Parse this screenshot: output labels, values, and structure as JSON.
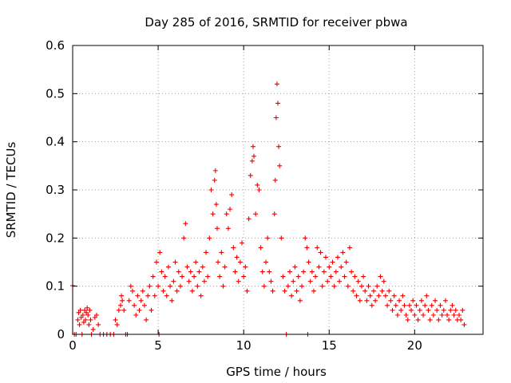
{
  "chart_data": {
    "type": "scatter",
    "title": "Day 285 of 2016, SRMTID for receiver pbwa",
    "xlabel": "GPS time / hours",
    "ylabel": "SRMTID / TECUs",
    "xlim": [
      0,
      24
    ],
    "ylim": [
      0,
      0.6
    ],
    "xticks": [
      0,
      5,
      10,
      15,
      20
    ],
    "yticks": [
      0,
      0.1,
      0.2,
      0.3,
      0.4,
      0.5,
      0.6
    ],
    "xtick_labels": [
      "0",
      "5",
      "10",
      "15",
      "20"
    ],
    "ytick_labels": [
      "0",
      "0.1",
      "0.2",
      "0.3",
      "0.4",
      "0.5",
      "0.6"
    ],
    "grid": true,
    "marker": "+",
    "marker_color": "#ee0000",
    "series": [
      {
        "name": "SRMTID",
        "points": [
          [
            0.0,
            0.101
          ],
          [
            0.1,
            0.0
          ],
          [
            0.2,
            0.0
          ],
          [
            0.3,
            0.03
          ],
          [
            0.35,
            0.045
          ],
          [
            0.4,
            0.02
          ],
          [
            0.45,
            0.05
          ],
          [
            0.5,
            0.035
          ],
          [
            0.55,
            0.0
          ],
          [
            0.6,
            0.04
          ],
          [
            0.65,
            0.025
          ],
          [
            0.7,
            0.05
          ],
          [
            0.75,
            0.03
          ],
          [
            0.8,
            0.045
          ],
          [
            0.85,
            0.055
          ],
          [
            0.9,
            0.04
          ],
          [
            0.95,
            0.02
          ],
          [
            1.0,
            0.05
          ],
          [
            1.05,
            0.03
          ],
          [
            1.1,
            0.0
          ],
          [
            1.2,
            0.01
          ],
          [
            1.3,
            0.035
          ],
          [
            1.4,
            0.04
          ],
          [
            1.5,
            0.02
          ],
          [
            1.6,
            0.0
          ],
          [
            1.8,
            0.0
          ],
          [
            2.0,
            0.0
          ],
          [
            2.2,
            0.0
          ],
          [
            2.4,
            0.0
          ],
          [
            2.5,
            0.03
          ],
          [
            2.6,
            0.02
          ],
          [
            2.7,
            0.05
          ],
          [
            2.8,
            0.06
          ],
          [
            2.85,
            0.08
          ],
          [
            2.9,
            0.07
          ],
          [
            3.0,
            0.05
          ],
          [
            3.1,
            0.0
          ],
          [
            3.2,
            0.0
          ],
          [
            3.3,
            0.07
          ],
          [
            3.4,
            0.1
          ],
          [
            3.5,
            0.09
          ],
          [
            3.6,
            0.06
          ],
          [
            3.7,
            0.04
          ],
          [
            3.8,
            0.08
          ],
          [
            3.9,
            0.05
          ],
          [
            4.0,
            0.07
          ],
          [
            4.1,
            0.09
          ],
          [
            4.2,
            0.06
          ],
          [
            4.3,
            0.03
          ],
          [
            4.4,
            0.08
          ],
          [
            4.5,
            0.1
          ],
          [
            4.6,
            0.05
          ],
          [
            4.7,
            0.12
          ],
          [
            4.8,
            0.08
          ],
          [
            4.9,
            0.15
          ],
          [
            5.0,
            0.1
          ],
          [
            5.05,
            0.0
          ],
          [
            5.1,
            0.17
          ],
          [
            5.2,
            0.13
          ],
          [
            5.3,
            0.09
          ],
          [
            5.4,
            0.12
          ],
          [
            5.5,
            0.08
          ],
          [
            5.6,
            0.14
          ],
          [
            5.7,
            0.1
          ],
          [
            5.8,
            0.07
          ],
          [
            5.9,
            0.11
          ],
          [
            6.0,
            0.15
          ],
          [
            6.1,
            0.09
          ],
          [
            6.2,
            0.13
          ],
          [
            6.3,
            0.1
          ],
          [
            6.4,
            0.12
          ],
          [
            6.5,
            0.2
          ],
          [
            6.6,
            0.23
          ],
          [
            6.7,
            0.14
          ],
          [
            6.8,
            0.11
          ],
          [
            6.9,
            0.13
          ],
          [
            7.0,
            0.09
          ],
          [
            7.1,
            0.12
          ],
          [
            7.2,
            0.15
          ],
          [
            7.3,
            0.1
          ],
          [
            7.4,
            0.13
          ],
          [
            7.5,
            0.08
          ],
          [
            7.6,
            0.14
          ],
          [
            7.7,
            0.11
          ],
          [
            7.8,
            0.17
          ],
          [
            7.9,
            0.12
          ],
          [
            8.0,
            0.2
          ],
          [
            8.1,
            0.3
          ],
          [
            8.2,
            0.25
          ],
          [
            8.3,
            0.32
          ],
          [
            8.35,
            0.34
          ],
          [
            8.4,
            0.27
          ],
          [
            8.45,
            0.22
          ],
          [
            8.5,
            0.15
          ],
          [
            8.6,
            0.12
          ],
          [
            8.7,
            0.17
          ],
          [
            8.8,
            0.1
          ],
          [
            8.9,
            0.14
          ],
          [
            9.0,
            0.25
          ],
          [
            9.1,
            0.22
          ],
          [
            9.2,
            0.26
          ],
          [
            9.3,
            0.29
          ],
          [
            9.4,
            0.18
          ],
          [
            9.5,
            0.13
          ],
          [
            9.6,
            0.16
          ],
          [
            9.7,
            0.11
          ],
          [
            9.8,
            0.15
          ],
          [
            9.9,
            0.19
          ],
          [
            10.0,
            0.12
          ],
          [
            10.1,
            0.14
          ],
          [
            10.2,
            0.09
          ],
          [
            10.3,
            0.24
          ],
          [
            10.4,
            0.33
          ],
          [
            10.5,
            0.36
          ],
          [
            10.55,
            0.39
          ],
          [
            10.6,
            0.37
          ],
          [
            10.7,
            0.25
          ],
          [
            10.8,
            0.31
          ],
          [
            10.9,
            0.3
          ],
          [
            11.0,
            0.18
          ],
          [
            11.1,
            0.13
          ],
          [
            11.2,
            0.1
          ],
          [
            11.3,
            0.15
          ],
          [
            11.4,
            0.2
          ],
          [
            11.5,
            0.13
          ],
          [
            11.6,
            0.11
          ],
          [
            11.7,
            0.09
          ],
          [
            11.8,
            0.25
          ],
          [
            11.85,
            0.32
          ],
          [
            11.9,
            0.45
          ],
          [
            11.95,
            0.52
          ],
          [
            12.0,
            0.48
          ],
          [
            12.05,
            0.39
          ],
          [
            12.1,
            0.35
          ],
          [
            12.2,
            0.2
          ],
          [
            12.3,
            0.12
          ],
          [
            12.4,
            0.09
          ],
          [
            12.5,
            0.0
          ],
          [
            12.6,
            0.1
          ],
          [
            12.7,
            0.13
          ],
          [
            12.8,
            0.08
          ],
          [
            12.9,
            0.11
          ],
          [
            13.0,
            0.14
          ],
          [
            13.1,
            0.09
          ],
          [
            13.2,
            0.12
          ],
          [
            13.3,
            0.07
          ],
          [
            13.4,
            0.1
          ],
          [
            13.5,
            0.13
          ],
          [
            13.6,
            0.2
          ],
          [
            13.7,
            0.18
          ],
          [
            13.75,
            0.0
          ],
          [
            13.8,
            0.15
          ],
          [
            13.9,
            0.11
          ],
          [
            14.0,
            0.13
          ],
          [
            14.1,
            0.09
          ],
          [
            14.2,
            0.12
          ],
          [
            14.3,
            0.18
          ],
          [
            14.4,
            0.14
          ],
          [
            14.5,
            0.17
          ],
          [
            14.6,
            0.1
          ],
          [
            14.7,
            0.13
          ],
          [
            14.8,
            0.16
          ],
          [
            14.9,
            0.11
          ],
          [
            15.0,
            0.14
          ],
          [
            15.1,
            0.12
          ],
          [
            15.2,
            0.15
          ],
          [
            15.3,
            0.1
          ],
          [
            15.4,
            0.13
          ],
          [
            15.5,
            0.16
          ],
          [
            15.6,
            0.11
          ],
          [
            15.7,
            0.14
          ],
          [
            15.8,
            0.17
          ],
          [
            15.9,
            0.12
          ],
          [
            16.0,
            0.15
          ],
          [
            16.1,
            0.1
          ],
          [
            16.2,
            0.18
          ],
          [
            16.3,
            0.13
          ],
          [
            16.4,
            0.09
          ],
          [
            16.5,
            0.12
          ],
          [
            16.6,
            0.08
          ],
          [
            16.7,
            0.11
          ],
          [
            16.8,
            0.07
          ],
          [
            16.9,
            0.1
          ],
          [
            17.0,
            0.12
          ],
          [
            17.1,
            0.09
          ],
          [
            17.2,
            0.07
          ],
          [
            17.3,
            0.1
          ],
          [
            17.4,
            0.08
          ],
          [
            17.5,
            0.06
          ],
          [
            17.6,
            0.09
          ],
          [
            17.7,
            0.07
          ],
          [
            17.8,
            0.1
          ],
          [
            17.9,
            0.08
          ],
          [
            18.0,
            0.12
          ],
          [
            18.1,
            0.09
          ],
          [
            18.2,
            0.11
          ],
          [
            18.3,
            0.08
          ],
          [
            18.4,
            0.06
          ],
          [
            18.5,
            0.09
          ],
          [
            18.6,
            0.07
          ],
          [
            18.7,
            0.05
          ],
          [
            18.8,
            0.08
          ],
          [
            18.9,
            0.06
          ],
          [
            19.0,
            0.04
          ],
          [
            19.1,
            0.07
          ],
          [
            19.2,
            0.05
          ],
          [
            19.3,
            0.08
          ],
          [
            19.4,
            0.06
          ],
          [
            19.5,
            0.04
          ],
          [
            19.6,
            0.03
          ],
          [
            19.7,
            0.06
          ],
          [
            19.8,
            0.05
          ],
          [
            19.9,
            0.07
          ],
          [
            20.0,
            0.04
          ],
          [
            20.1,
            0.06
          ],
          [
            20.2,
            0.03
          ],
          [
            20.3,
            0.05
          ],
          [
            20.4,
            0.07
          ],
          [
            20.5,
            0.04
          ],
          [
            20.6,
            0.06
          ],
          [
            20.7,
            0.08
          ],
          [
            20.8,
            0.05
          ],
          [
            20.9,
            0.03
          ],
          [
            21.0,
            0.06
          ],
          [
            21.1,
            0.04
          ],
          [
            21.2,
            0.07
          ],
          [
            21.3,
            0.05
          ],
          [
            21.4,
            0.03
          ],
          [
            21.5,
            0.06
          ],
          [
            21.6,
            0.04
          ],
          [
            21.7,
            0.05
          ],
          [
            21.8,
            0.07
          ],
          [
            21.9,
            0.04
          ],
          [
            22.0,
            0.03
          ],
          [
            22.1,
            0.05
          ],
          [
            22.2,
            0.06
          ],
          [
            22.3,
            0.04
          ],
          [
            22.4,
            0.05
          ],
          [
            22.5,
            0.03
          ],
          [
            22.6,
            0.04
          ],
          [
            22.7,
            0.03
          ],
          [
            22.8,
            0.05
          ],
          [
            22.9,
            0.02
          ]
        ]
      }
    ]
  }
}
